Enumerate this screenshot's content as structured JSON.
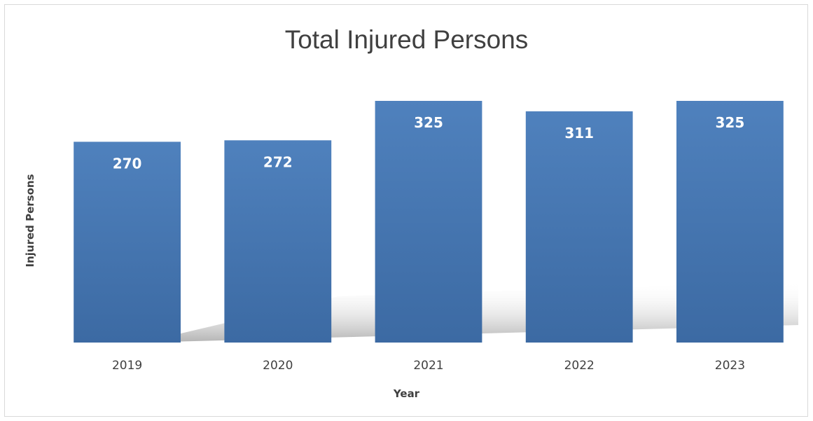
{
  "chart_data": {
    "type": "bar",
    "title": "Total Injured Persons",
    "xlabel": "Year",
    "ylabel": "Injured Persons",
    "categories": [
      "2019",
      "2020",
      "2021",
      "2022",
      "2023"
    ],
    "values": [
      270,
      272,
      325,
      311,
      325
    ],
    "ylim": [
      0,
      325
    ],
    "data_labels": [
      "270",
      "272",
      "325",
      "311",
      "325"
    ],
    "bar_color_top": "#4f81bd",
    "bar_color_bottom": "#3c6aa3",
    "grid": false,
    "legend": "none"
  }
}
